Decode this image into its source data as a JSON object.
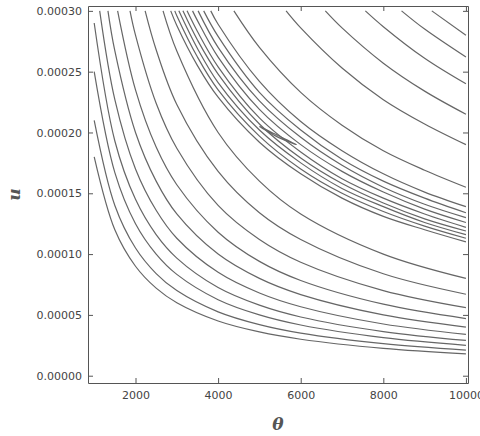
{
  "chart_data": {
    "type": "contour",
    "x_label": "θ",
    "y_label": "u",
    "color": "#666666",
    "xlim": [
      850,
      10050
    ],
    "ylim": [
      -6e-06,
      0.000304
    ],
    "xticks": [
      2000,
      4000,
      6000,
      8000,
      10000
    ],
    "yticks": [
      {
        "value": 0,
        "label": "0.00000"
      },
      {
        "value": 5e-05,
        "label": "0.00005"
      },
      {
        "value": 0.0001,
        "label": "0.00010"
      },
      {
        "value": 0.00015,
        "label": "0.00015"
      },
      {
        "value": 0.0002,
        "label": "0.00020"
      },
      {
        "value": 0.00025,
        "label": "0.00025"
      },
      {
        "value": 0.0003,
        "label": "0.00030"
      }
    ],
    "series": [
      {
        "x": [
          1000,
          1500,
          2000,
          2500,
          3000,
          4000,
          5000,
          6000,
          8000,
          10000
        ],
        "values": [
          0.00018,
          0.00012,
          9e-05,
          7.2e-05,
          6e-05,
          4.5e-05,
          3.6e-05,
          3e-05,
          2.25e-05,
          1.8e-05
        ]
      },
      {
        "x": [
          1000,
          1500,
          2000,
          2500,
          3000,
          4000,
          5000,
          6000,
          8000,
          10000
        ],
        "values": [
          0.00021,
          0.00014,
          0.000105,
          8.4e-05,
          7e-05,
          5.25e-05,
          4.2e-05,
          3.5e-05,
          2.63e-05,
          2.1e-05
        ]
      },
      {
        "x": [
          1000,
          1500,
          2000,
          2500,
          3000,
          4000,
          5000,
          6000,
          8000,
          10000
        ],
        "values": [
          0.00025,
          0.000167,
          0.000125,
          0.0001,
          8.33e-05,
          6.25e-05,
          5e-05,
          4.17e-05,
          3.13e-05,
          2.5e-05
        ]
      },
      {
        "x": [
          1000,
          1500,
          2000,
          2500,
          3000,
          4000,
          5000,
          6000,
          8000,
          10000
        ],
        "values": [
          0.00029,
          0.000193,
          0.000145,
          0.000116,
          9.67e-05,
          7.25e-05,
          5.8e-05,
          4.83e-05,
          3.63e-05,
          2.9e-05
        ]
      },
      {
        "x": [
          1133,
          1500,
          2000,
          2500,
          3000,
          4000,
          5000,
          6000,
          8000,
          10000
        ],
        "values": [
          0.0003,
          0.000227,
          0.00017,
          0.000136,
          0.000113,
          8.5e-05,
          6.8e-05,
          5.67e-05,
          4.25e-05,
          3.4e-05
        ]
      },
      {
        "x": [
          1333,
          1500,
          2000,
          2500,
          3000,
          4000,
          5000,
          6000,
          8000,
          10000
        ],
        "values": [
          0.0003,
          0.000267,
          0.0002,
          0.00016,
          0.000133,
          0.0001,
          8e-05,
          6.67e-05,
          5e-05,
          4e-05
        ]
      },
      {
        "x": [
          1567,
          2000,
          2500,
          3000,
          4000,
          5000,
          6000,
          8000,
          10000
        ],
        "values": [
          0.0003,
          0.000235,
          0.000188,
          0.000157,
          0.000118,
          9.4e-05,
          7.83e-05,
          5.88e-05,
          4.7e-05
        ]
      },
      {
        "x": [
          1867,
          2000,
          2500,
          3000,
          4000,
          5000,
          6000,
          8000,
          10000
        ],
        "values": [
          0.0003,
          0.00028,
          0.000224,
          0.000187,
          0.00014,
          0.000112,
          9.33e-05,
          7e-05,
          5.6e-05
        ]
      },
      {
        "x": [
          2233,
          2500,
          3000,
          4000,
          5000,
          6000,
          8000,
          10000
        ],
        "values": [
          0.0003,
          0.000268,
          0.000223,
          0.000168,
          0.000134,
          0.000112,
          8.38e-05,
          6.7e-05
        ]
      },
      {
        "x": [
          2667,
          3000,
          4000,
          5000,
          6000,
          8000,
          10000
        ],
        "values": [
          0.0003,
          0.000267,
          0.0002,
          0.00016,
          0.000133,
          0.0001,
          8e-05
        ]
      },
      {
        "x": [
          2853,
          3000,
          3500,
          4000,
          5000,
          6000,
          7000,
          8000,
          9000,
          10000
        ],
        "values": [
          0.0003,
          0.000288,
          0.000255,
          0.000229,
          0.000192,
          0.000166,
          0.000146,
          0.000131,
          0.00012,
          0.00011
        ]
      },
      {
        "x": [
          2951,
          3000,
          3500,
          4000,
          5000,
          6000,
          7000,
          8000,
          9000,
          10000
        ],
        "values": [
          0.0003,
          0.000296,
          0.000262,
          0.000235,
          0.000197,
          0.00017,
          0.00015,
          0.000135,
          0.000123,
          0.000113
        ]
      },
      {
        "x": [
          3049,
          3500,
          4000,
          5000,
          6000,
          7000,
          8000,
          9000,
          10000
        ],
        "values": [
          0.0003,
          0.000269,
          0.000241,
          0.000202,
          0.000175,
          0.000154,
          0.000139,
          0.000126,
          0.000116
        ]
      },
      {
        "x": [
          3148,
          3500,
          4000,
          5000,
          6000,
          7000,
          8000,
          9000,
          10000
        ],
        "values": [
          0.0003,
          0.000276,
          0.000248,
          0.000207,
          0.000179,
          0.000158,
          0.000142,
          0.000129,
          0.000119
        ]
      },
      {
        "x": [
          3248,
          3500,
          4000,
          5000,
          6000,
          7000,
          8000,
          9000,
          10000
        ],
        "values": [
          0.0003,
          0.000283,
          0.000254,
          0.000212,
          0.000184,
          0.000162,
          0.000146,
          0.000133,
          0.000122
        ]
      },
      {
        "x": [
          3381,
          3500,
          4000,
          5000,
          6000,
          7000,
          8000,
          9000,
          10000
        ],
        "values": [
          0.0003,
          0.000292,
          0.000262,
          0.000219,
          0.00019,
          0.000168,
          0.000151,
          0.000137,
          0.000126
        ]
      },
      {
        "x": [
          3516,
          4000,
          5000,
          6000,
          7000,
          8000,
          9000,
          10000
        ],
        "values": [
          0.0003,
          0.00027,
          0.000226,
          0.000196,
          0.000173,
          0.000155,
          0.000141,
          0.00013
        ]
      },
      {
        "x": [
          3651,
          4000,
          5000,
          6000,
          7000,
          8000,
          9000,
          10000
        ],
        "values": [
          0.0003,
          0.000279,
          0.000233,
          0.000202,
          0.000178,
          0.00016,
          0.000146,
          0.000134
        ]
      },
      {
        "x": [
          3822,
          4000,
          5000,
          6000,
          7000,
          8000,
          9000,
          10000
        ],
        "values": [
          0.0003,
          0.000289,
          0.000242,
          0.000209,
          0.000185,
          0.000166,
          0.000151,
          0.000139
        ]
      },
      {
        "x": [
          5000,
          5300,
          5900,
          5400,
          5050,
          5000
        ],
        "values": [
          0.000205,
          0.0002,
          0.00019,
          0.000197,
          0.000204,
          0.000205
        ]
      },
      {
        "x": [
          4382,
          5000,
          6000,
          7000,
          8000,
          9000,
          10000
        ],
        "values": [
          0.0003,
          0.00027,
          0.000233,
          0.000206,
          0.000185,
          0.000169,
          0.000155
        ]
      },
      {
        "x": [
          5646,
          6000,
          7000,
          8000,
          9000,
          10000
        ],
        "values": [
          0.0003,
          0.000286,
          0.000253,
          0.000227,
          0.000207,
          0.00019
        ]
      },
      {
        "x": [
          6596,
          7000,
          8000,
          9000,
          10000
        ],
        "values": [
          0.0003,
          0.000286,
          0.000257,
          0.000234,
          0.000215
        ]
      },
      {
        "x": [
          7565,
          8000,
          9000,
          10000
        ],
        "values": [
          0.0003,
          0.000287,
          0.000261,
          0.00024
        ]
      },
      {
        "x": [
          8441,
          9000,
          10000
        ],
        "values": [
          0.0003,
          0.000285,
          0.000262
        ]
      },
      {
        "x": [
          9174,
          10000
        ],
        "values": [
          0.0003,
          0.00028
        ]
      }
    ]
  }
}
